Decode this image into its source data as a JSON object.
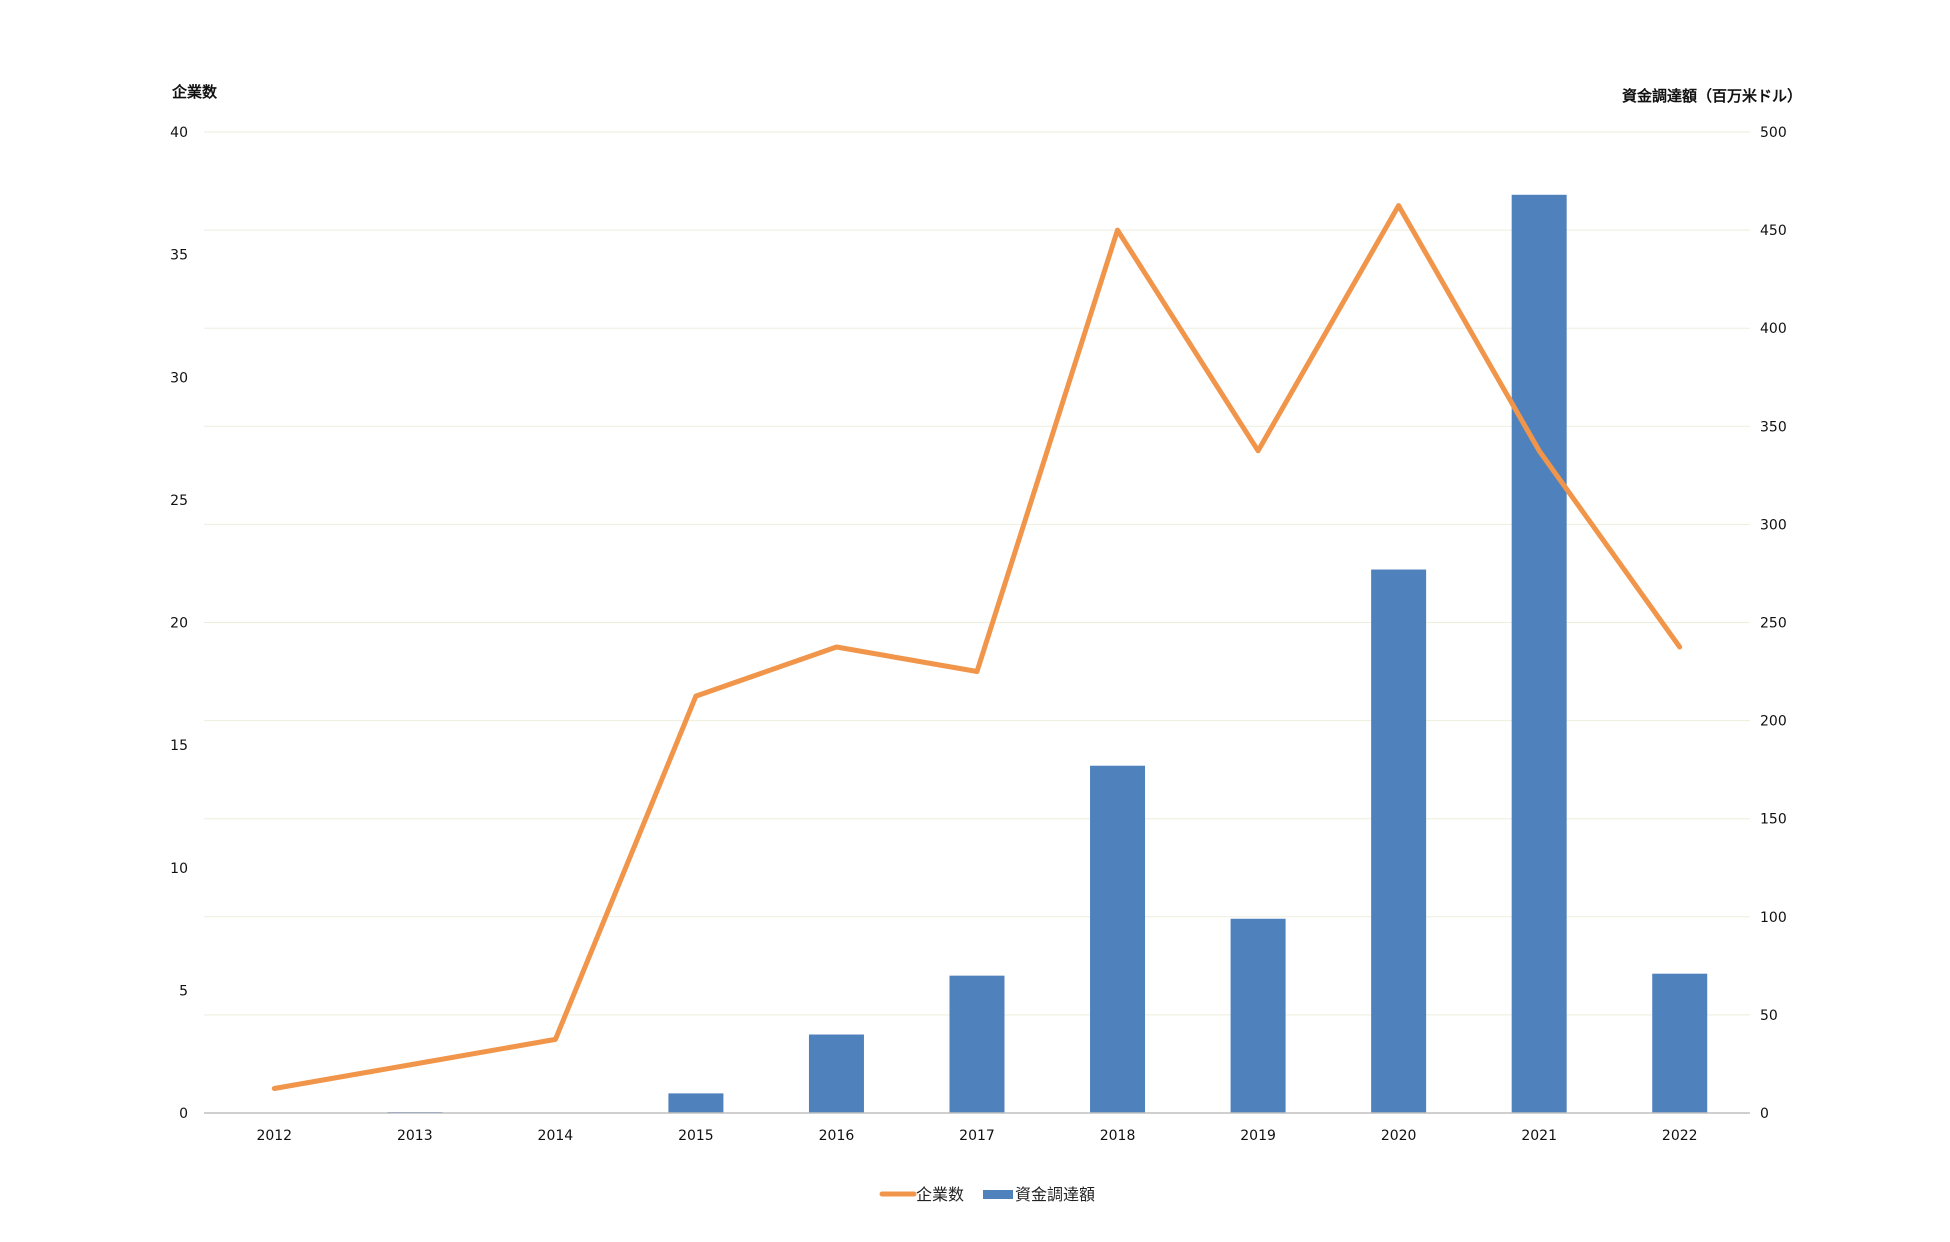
{
  "chart_data": {
    "type": "bar",
    "categories": [
      "2012",
      "2013",
      "2014",
      "2015",
      "2016",
      "2017",
      "2018",
      "2019",
      "2020",
      "2021",
      "2022"
    ],
    "series": [
      {
        "name": "企業数",
        "type": "line",
        "axis": "left",
        "color": "#F0954A",
        "values": [
          1,
          2,
          3,
          17,
          19,
          18,
          36,
          27,
          37,
          27,
          19
        ]
      },
      {
        "name": "資金調達額",
        "type": "bar",
        "axis": "right",
        "color": "#4F81BD",
        "values": [
          0,
          0.5,
          0,
          10,
          40,
          70,
          177,
          99,
          277,
          468,
          71
        ]
      }
    ],
    "y_left": {
      "label": "企業数",
      "ylim": [
        0,
        40
      ],
      "ticks": [
        "0",
        "5",
        "10",
        "15",
        "20",
        "25",
        "30",
        "35",
        "40"
      ]
    },
    "y_right": {
      "label": "資金調達額（百万米ドル）",
      "ylim": [
        0,
        500
      ],
      "ticks": [
        "0",
        "50",
        "100",
        "150",
        "200",
        "250",
        "300",
        "350",
        "400",
        "450",
        "500"
      ]
    },
    "grid": true,
    "legend": "bottom-center"
  }
}
